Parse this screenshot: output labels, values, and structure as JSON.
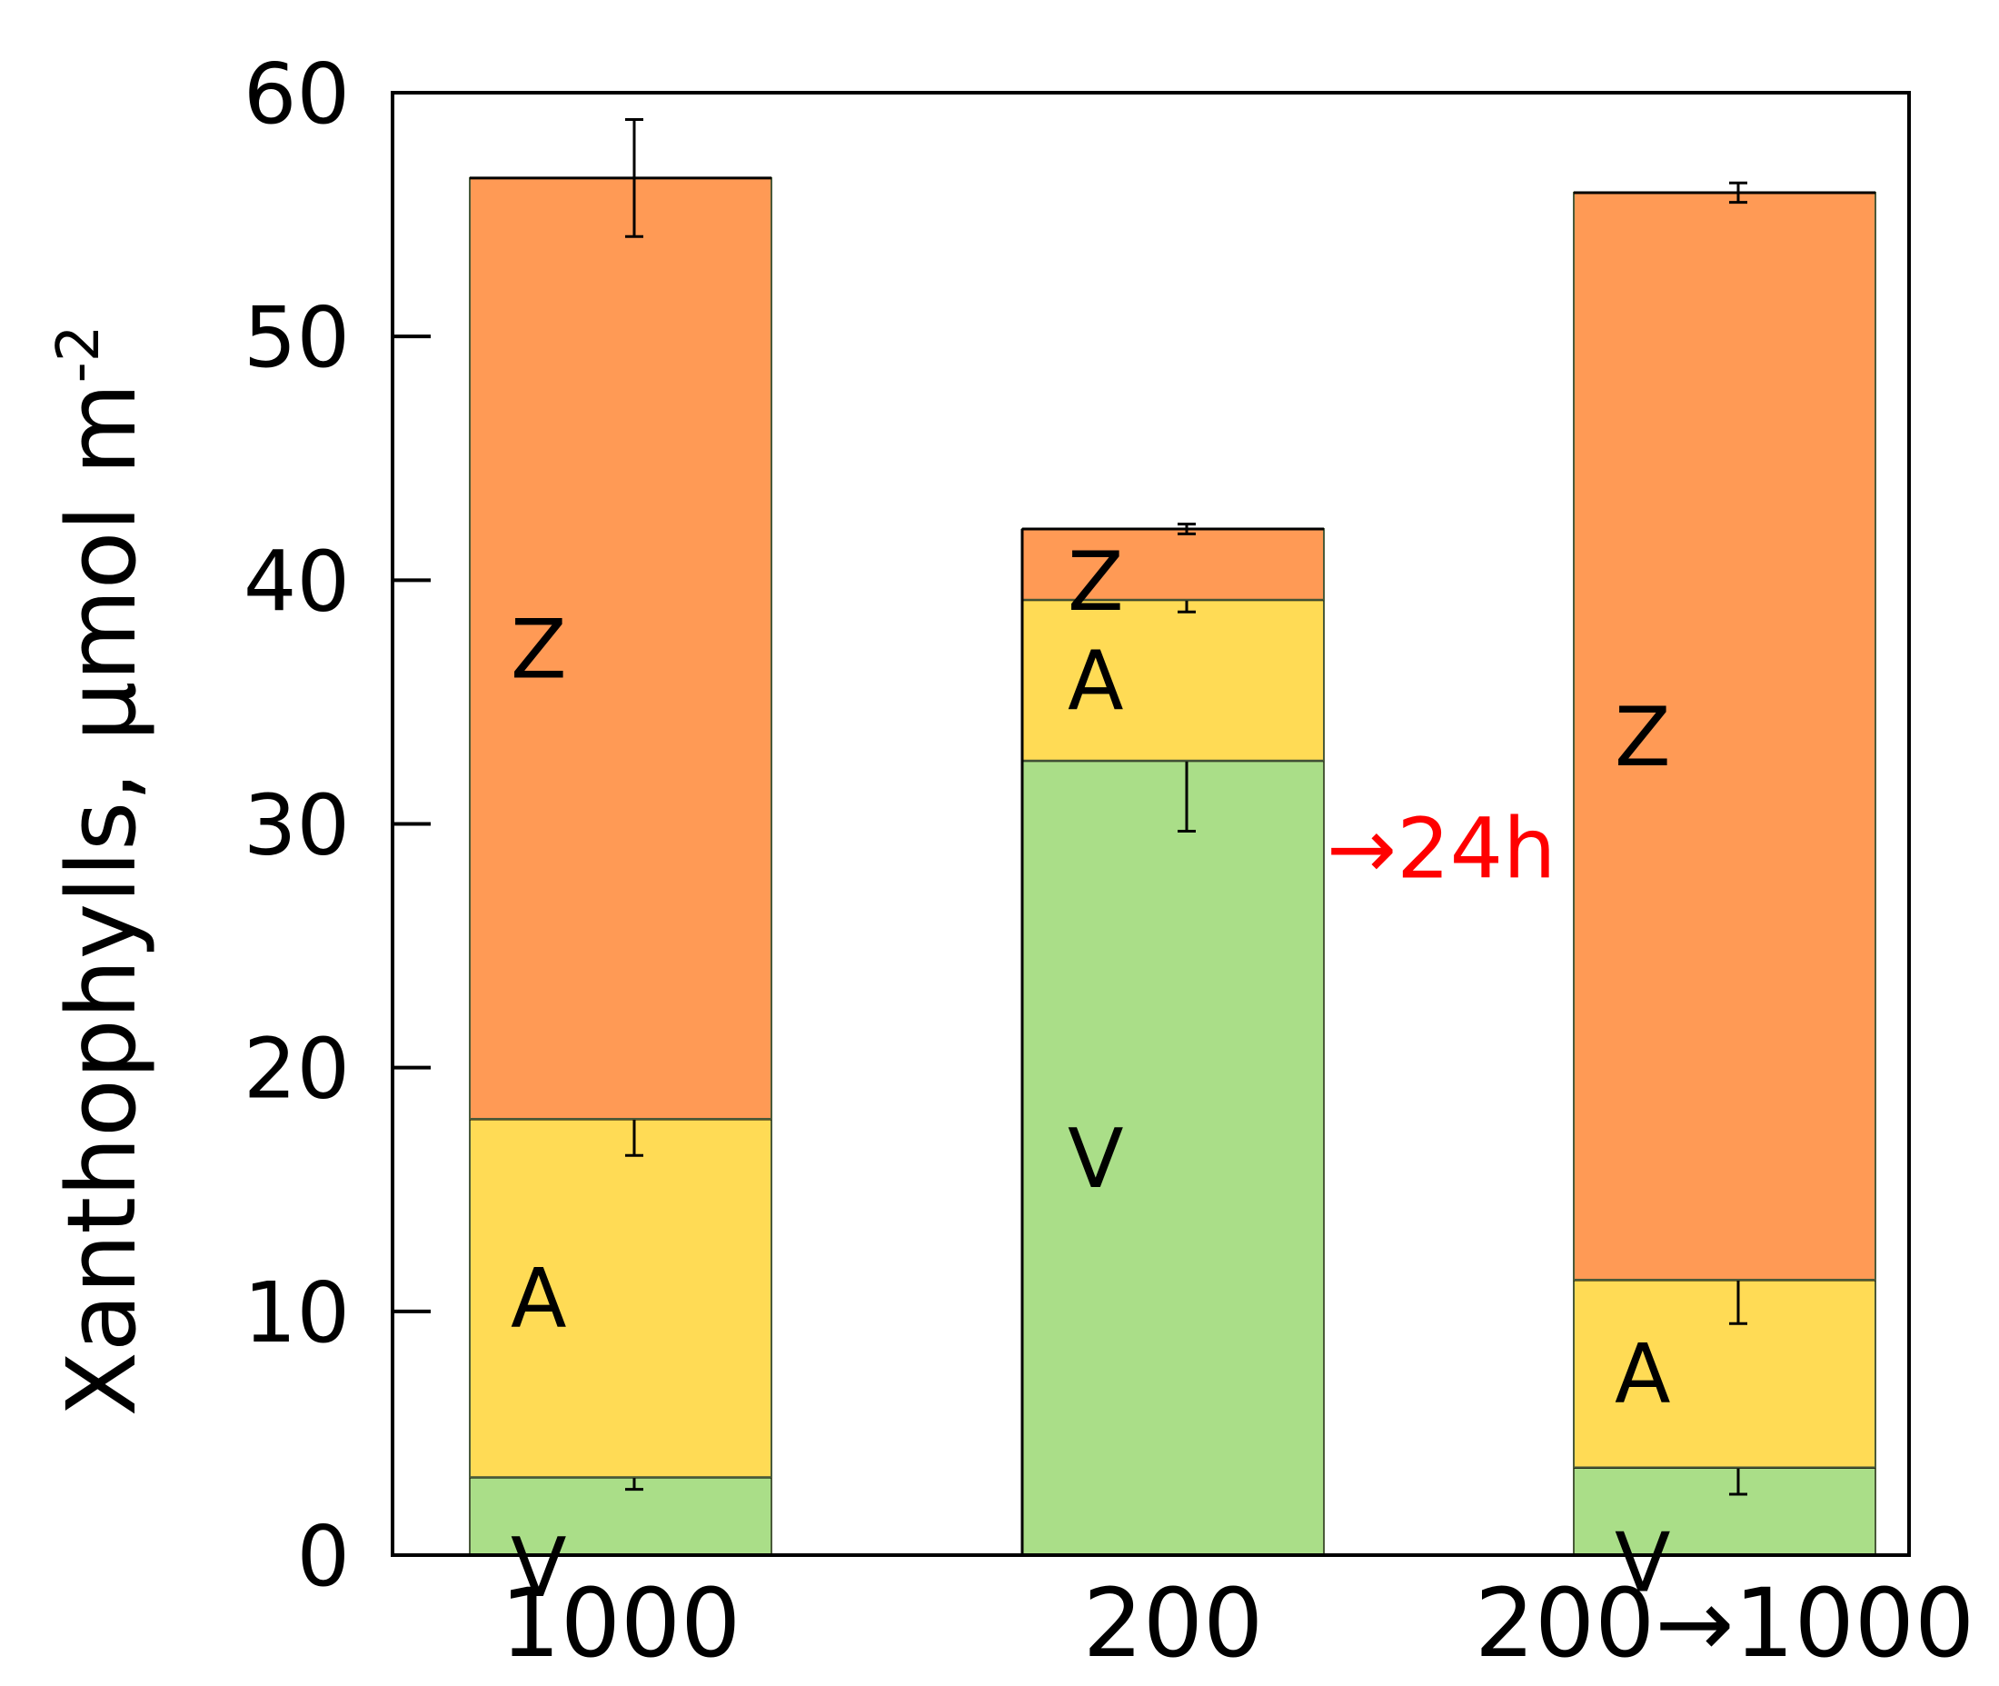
{
  "chart_data": {
    "type": "bar",
    "stacked": true,
    "title": "",
    "xlabel": "",
    "ylabel": "Xanthophylls, μmol m",
    "ylabel_superscript": "-2",
    "ylim": [
      0,
      60
    ],
    "yticks": [
      "0",
      "10",
      "20",
      "30",
      "40",
      "50",
      "60"
    ],
    "grid": false,
    "categories": [
      "1000",
      "200",
      "200→1000"
    ],
    "series": [
      {
        "name": "V",
        "color": "#aade88",
        "values": [
          3.2,
          32.6,
          3.6
        ],
        "errors": [
          0.5,
          2.9,
          1.1
        ]
      },
      {
        "name": "A",
        "color": "#ffdb55",
        "values": [
          14.7,
          6.6,
          7.7
        ],
        "errors": [
          1.5,
          0.5,
          1.8
        ]
      },
      {
        "name": "Z",
        "color": "#ff9a55",
        "values": [
          38.6,
          2.9,
          44.6
        ],
        "errors": [
          2.4,
          0.2,
          0.4
        ]
      }
    ],
    "annotations": [
      {
        "text": "→24h",
        "color": "#ff0000",
        "between": [
          "200",
          "200→1000"
        ],
        "y": 29
      }
    ]
  }
}
